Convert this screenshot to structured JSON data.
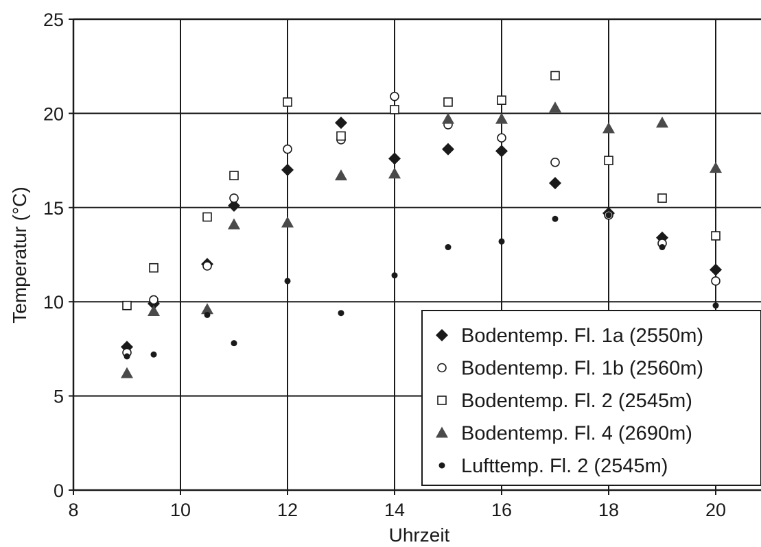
{
  "chart_data": {
    "type": "scatter",
    "title": "",
    "xlabel": "Uhrzeit",
    "ylabel": "Temperatur (°C)",
    "xlim": [
      8,
      21
    ],
    "ylim": [
      0,
      25
    ],
    "x_ticks": [
      8,
      10,
      12,
      14,
      16,
      18,
      20
    ],
    "y_ticks": [
      0,
      5,
      10,
      15,
      20,
      25
    ],
    "grid": true,
    "legend_position": "bottom-right",
    "series": [
      {
        "name": "Bodentemp. Fl. 1a (2550m)",
        "marker": "diamond-filled",
        "color": "#1a1a1a",
        "points": [
          [
            9,
            7.6
          ],
          [
            9.5,
            9.9
          ],
          [
            10.5,
            12.0
          ],
          [
            11,
            15.1
          ],
          [
            12,
            17.0
          ],
          [
            13,
            19.5
          ],
          [
            14,
            17.6
          ],
          [
            15,
            18.1
          ],
          [
            16,
            18.0
          ],
          [
            17,
            16.3
          ],
          [
            18,
            14.7
          ],
          [
            19,
            13.4
          ],
          [
            20,
            11.7
          ]
        ]
      },
      {
        "name": "Bodentemp. Fl. 1b (2560m)",
        "marker": "circle-open",
        "color": "#1a1a1a",
        "points": [
          [
            9,
            7.3
          ],
          [
            9.5,
            10.1
          ],
          [
            10.5,
            11.9
          ],
          [
            11,
            15.5
          ],
          [
            12,
            18.1
          ],
          [
            13,
            18.6
          ],
          [
            14,
            20.9
          ],
          [
            15,
            19.4
          ],
          [
            16,
            18.7
          ],
          [
            17,
            17.4
          ],
          [
            18,
            14.6
          ],
          [
            19,
            13.1
          ],
          [
            20,
            11.1
          ]
        ]
      },
      {
        "name": "Bodentemp. Fl. 2 (2545m)",
        "marker": "square-open",
        "color": "#1a1a1a",
        "points": [
          [
            9,
            9.8
          ],
          [
            9.5,
            11.8
          ],
          [
            10.5,
            14.5
          ],
          [
            11,
            16.7
          ],
          [
            12,
            20.6
          ],
          [
            13,
            18.8
          ],
          [
            14,
            20.2
          ],
          [
            15,
            20.6
          ],
          [
            16,
            20.7
          ],
          [
            17,
            22.0
          ],
          [
            18,
            17.5
          ],
          [
            19,
            15.5
          ],
          [
            20,
            13.5
          ]
        ]
      },
      {
        "name": "Bodentemp. Fl. 4 (2690m)",
        "marker": "triangle-filled",
        "color": "#4a4a4a",
        "points": [
          [
            9,
            6.2
          ],
          [
            9.5,
            9.5
          ],
          [
            10.5,
            9.6
          ],
          [
            11,
            14.1
          ],
          [
            12,
            14.2
          ],
          [
            13,
            16.7
          ],
          [
            14,
            16.8
          ],
          [
            15,
            19.7
          ],
          [
            16,
            19.7
          ],
          [
            17,
            20.3
          ],
          [
            18,
            19.2
          ],
          [
            19,
            19.5
          ],
          [
            20,
            17.1
          ]
        ]
      },
      {
        "name": "Lufttemp. Fl. 2 (2545m)",
        "marker": "dot-filled",
        "color": "#1a1a1a",
        "points": [
          [
            9,
            7.1
          ],
          [
            9.5,
            7.2
          ],
          [
            10.5,
            9.3
          ],
          [
            11,
            7.8
          ],
          [
            12,
            11.1
          ],
          [
            13,
            9.4
          ],
          [
            14,
            11.4
          ],
          [
            15,
            12.9
          ],
          [
            16,
            13.2
          ],
          [
            17,
            14.4
          ],
          [
            18,
            14.6
          ],
          [
            19,
            12.9
          ],
          [
            20,
            9.8
          ]
        ]
      }
    ]
  }
}
